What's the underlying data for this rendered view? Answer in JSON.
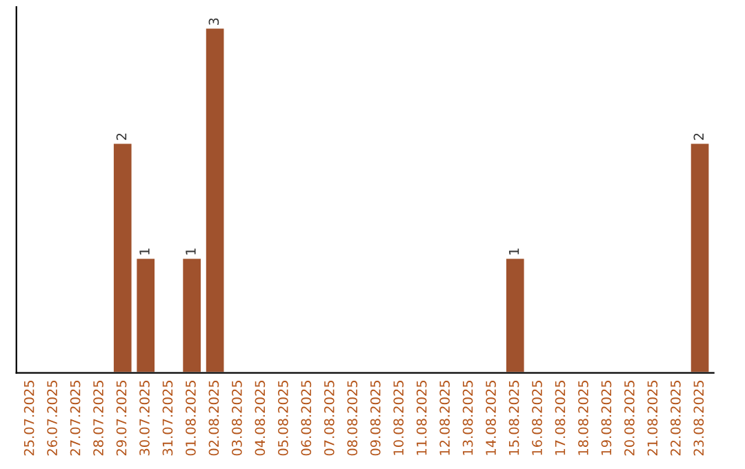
{
  "chart_data": {
    "type": "bar",
    "categories": [
      "25.07.2025",
      "26.07.2025",
      "27.07.2025",
      "28.07.2025",
      "29.07.2025",
      "30.07.2025",
      "31.07.2025",
      "01.08.2025",
      "02.08.2025",
      "03.08.2025",
      "04.08.2025",
      "05.08.2025",
      "06.08.2025",
      "07.08.2025",
      "08.08.2025",
      "09.08.2025",
      "10.08.2025",
      "11.08.2025",
      "12.08.2025",
      "13.08.2025",
      "14.08.2025",
      "15.08.2025",
      "16.08.2025",
      "17.08.2025",
      "18.08.2025",
      "19.08.2025",
      "20.08.2025",
      "21.08.2025",
      "22.08.2025",
      "23.08.2025"
    ],
    "values": [
      null,
      null,
      null,
      null,
      2,
      1,
      null,
      1,
      3,
      null,
      null,
      null,
      null,
      null,
      null,
      null,
      null,
      null,
      null,
      null,
      null,
      1,
      null,
      null,
      null,
      null,
      null,
      null,
      null,
      2
    ],
    "color": "#a0522d",
    "data_labels": true,
    "tick_labels": "x",
    "grid": false,
    "legend": false
  }
}
